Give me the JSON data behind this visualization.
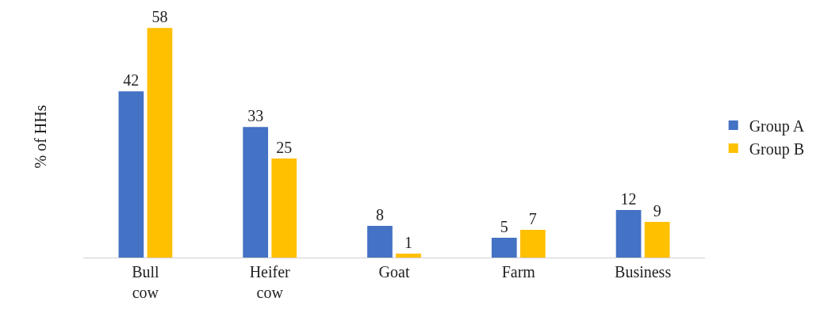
{
  "chart_data": {
    "type": "bar",
    "ylabel": "% of HHs",
    "categories": [
      "Bull cow",
      "Heifer cow",
      "Goat",
      "Farm",
      "Business"
    ],
    "series": [
      {
        "name": "Group A",
        "color": "#4472c4",
        "values": [
          42,
          33,
          8,
          5,
          12
        ]
      },
      {
        "name": "Group B",
        "color": "#ffc000",
        "values": [
          58,
          25,
          1,
          7,
          9
        ]
      }
    ],
    "data_labels": true,
    "tick_labels": "x",
    "grid": false,
    "legend": "right"
  }
}
